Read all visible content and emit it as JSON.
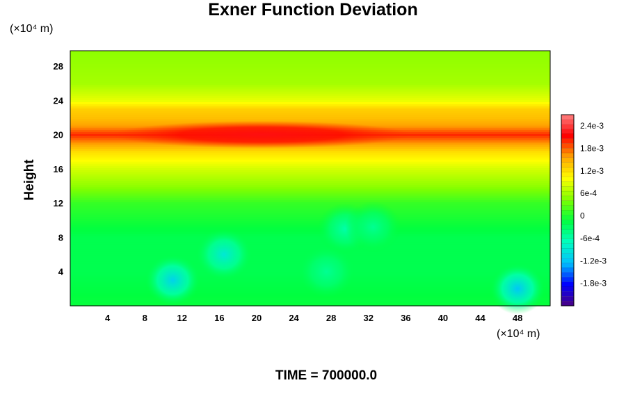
{
  "chart_data": {
    "type": "heatmap",
    "title": "Exner Function Deviation",
    "ylabel": "Height",
    "y_unit": "(×10⁴ m)",
    "x_unit": "(×10⁴ m)",
    "footer": "TIME = 700000.0",
    "xlim": [
      0,
      51.5
    ],
    "ylim": [
      0,
      29.8
    ],
    "x_ticks": [
      "4",
      "8",
      "12",
      "16",
      "20",
      "24",
      "28",
      "32",
      "36",
      "40",
      "44",
      "48"
    ],
    "x_tick_values": [
      4,
      8,
      12,
      16,
      20,
      24,
      28,
      32,
      36,
      40,
      44,
      48
    ],
    "y_ticks": [
      "4",
      "8",
      "12",
      "16",
      "20",
      "24",
      "28"
    ],
    "y_tick_values": [
      4,
      8,
      12,
      16,
      20,
      24,
      28
    ],
    "colorbar": {
      "min": -0.0024,
      "max": 0.0027,
      "tick_labels": [
        "2.4e-3",
        "1.8e-3",
        "1.2e-3",
        "6e-4",
        "0",
        "-6e-4",
        "-1.2e-3",
        "-1.8e-3"
      ],
      "tick_values": [
        0.0024,
        0.0018,
        0.0012,
        0.0006,
        0,
        -0.0006,
        -0.0012,
        -0.0018
      ],
      "colors": [
        "#4b0082",
        "#0000ff",
        "#00bfff",
        "#00ffbf",
        "#00ff40",
        "#7fff00",
        "#ffff00",
        "#ffa500",
        "#ff0000",
        "#ff8080"
      ]
    },
    "field_profile": {
      "heights": [
        0,
        4,
        8,
        12,
        14,
        16,
        18,
        19,
        20,
        21,
        22,
        23,
        24,
        26,
        29.8
      ],
      "values": [
        -0.0001,
        -0.0002,
        -0.0002,
        0.0001,
        0.0005,
        0.0008,
        0.0012,
        0.0016,
        0.002,
        0.0016,
        0.0014,
        0.0013,
        0.0009,
        0.0006,
        0.0005
      ]
    },
    "local_minima": [
      {
        "x": 11,
        "y": 3,
        "value": -0.0011
      },
      {
        "x": 16.5,
        "y": 6,
        "value": -0.0009
      },
      {
        "x": 29.5,
        "y": 9,
        "value": -0.0006
      },
      {
        "x": 32.5,
        "y": 9.2,
        "value": -0.0005
      },
      {
        "x": 48,
        "y": 2,
        "value": -0.0012
      },
      {
        "x": 27.5,
        "y": 4,
        "value": -0.0005
      }
    ],
    "local_maxima": [
      {
        "x": 20.5,
        "y": 20,
        "value": 0.0022
      }
    ]
  }
}
